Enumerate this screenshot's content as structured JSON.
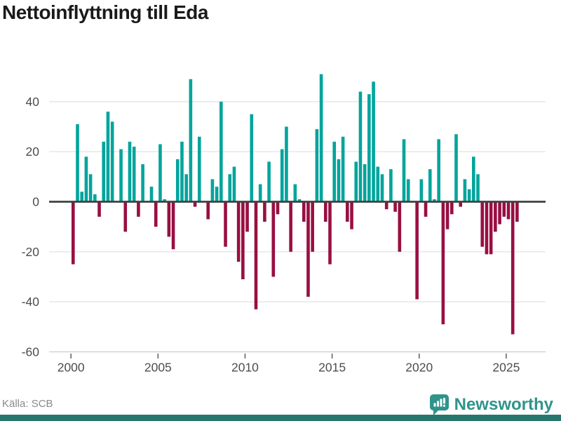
{
  "title": "Nettoinflyttning till Eda",
  "source_label": "Källa: SCB",
  "brand": {
    "name": "Newsworthy"
  },
  "colors": {
    "positive_bar": "#00a49c",
    "negative_bar": "#990f42",
    "zero_line": "#404040",
    "gridline": "#e4e4e4",
    "axis_spine": "#cfcfcf",
    "tick_mark": "#666666",
    "axis_label": "#4d4d4d",
    "title_text": "#1a1a1a",
    "source_text": "#8a8a8a",
    "brand_teal": "#2f948b",
    "footer_strip": "#26766e"
  },
  "chart_data": {
    "type": "bar",
    "title": "Nettoinflyttning till Eda",
    "xlabel": "",
    "ylabel": "",
    "frequency": "quarterly",
    "x_start": "2000-Q1",
    "x_end": "2025-Q3",
    "x_tick_labels": [
      "2000",
      "2005",
      "2010",
      "2015",
      "2020",
      "2025"
    ],
    "y_ticks": [
      40,
      20,
      0,
      -20,
      -40,
      -60
    ],
    "ylim": [
      -60,
      53
    ],
    "grid": true,
    "legend": false,
    "series": [
      {
        "name": "Nettoinflyttning",
        "values": [
          -25,
          31,
          4,
          18,
          11,
          3,
          -6,
          24,
          36,
          32,
          0,
          21,
          -12,
          24,
          22,
          -6,
          15,
          0,
          6,
          -10,
          23,
          1,
          -14,
          -19,
          17,
          24,
          11,
          49,
          -2,
          26,
          0,
          -7,
          9,
          6,
          40,
          -18,
          11,
          14,
          -24,
          -31,
          -12,
          35,
          -43,
          7,
          -8,
          16,
          -30,
          -5,
          21,
          30,
          -20,
          7,
          1,
          -8,
          -38,
          -20,
          29,
          51,
          -8,
          -25,
          24,
          17,
          26,
          -8,
          -11,
          16,
          44,
          15,
          43,
          48,
          14,
          11,
          -3,
          13,
          -4,
          -20,
          25,
          9,
          0,
          -39,
          9,
          -6,
          13,
          1,
          25,
          -49,
          -11,
          -5,
          27,
          -2,
          9,
          5,
          18,
          11,
          -18,
          -21,
          -21,
          -12,
          -9,
          -6,
          -7,
          -53,
          -8
        ]
      }
    ]
  }
}
